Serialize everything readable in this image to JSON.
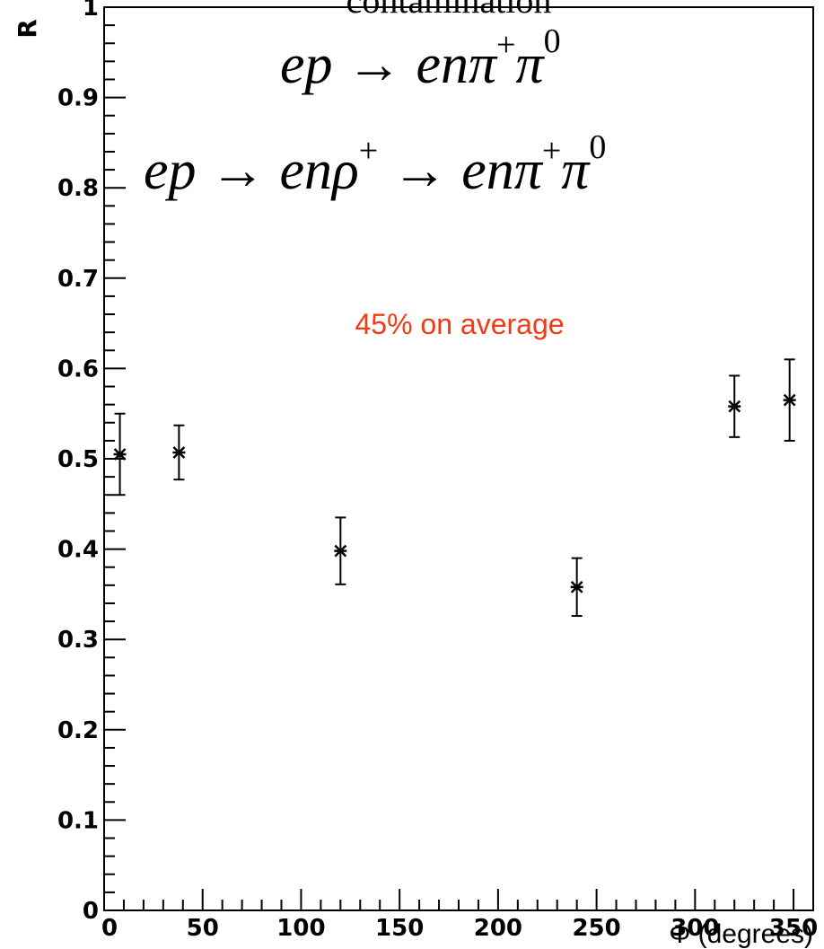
{
  "chart_data": {
    "type": "scatter",
    "title": "contamination",
    "xlabel": "Φ (degrees)",
    "ylabel": "R",
    "xlim": [
      0,
      360
    ],
    "ylim": [
      0,
      1
    ],
    "x_ticks": [
      "0",
      "50",
      "100",
      "150",
      "200",
      "250",
      "300",
      "350"
    ],
    "y_ticks": [
      "0",
      "0.1",
      "0.2",
      "0.3",
      "0.4",
      "0.5",
      "0.6",
      "0.7",
      "0.8",
      "0.9",
      "1"
    ],
    "grid": false,
    "series": [
      {
        "points": [
          {
            "x": 8,
            "y": 0.505,
            "err": 0.045
          },
          {
            "x": 38,
            "y": 0.507,
            "err": 0.03
          },
          {
            "x": 120,
            "y": 0.398,
            "err": 0.037
          },
          {
            "x": 240,
            "y": 0.358,
            "err": 0.032
          },
          {
            "x": 320,
            "y": 0.558,
            "err": 0.034
          },
          {
            "x": 348,
            "y": 0.565,
            "err": 0.045
          }
        ]
      }
    ],
    "annotations": {
      "formula1": {
        "base1": "ep → enπ",
        "sup1": "+",
        "base2": "π",
        "sup2": "0"
      },
      "formula2": {
        "base1": "ep → enρ",
        "sup1": "+",
        "base2": " → enπ",
        "sup2": "+",
        "base3": "π",
        "sup3": "0"
      },
      "note": "45% on average",
      "note_color": "#f03c14"
    }
  }
}
